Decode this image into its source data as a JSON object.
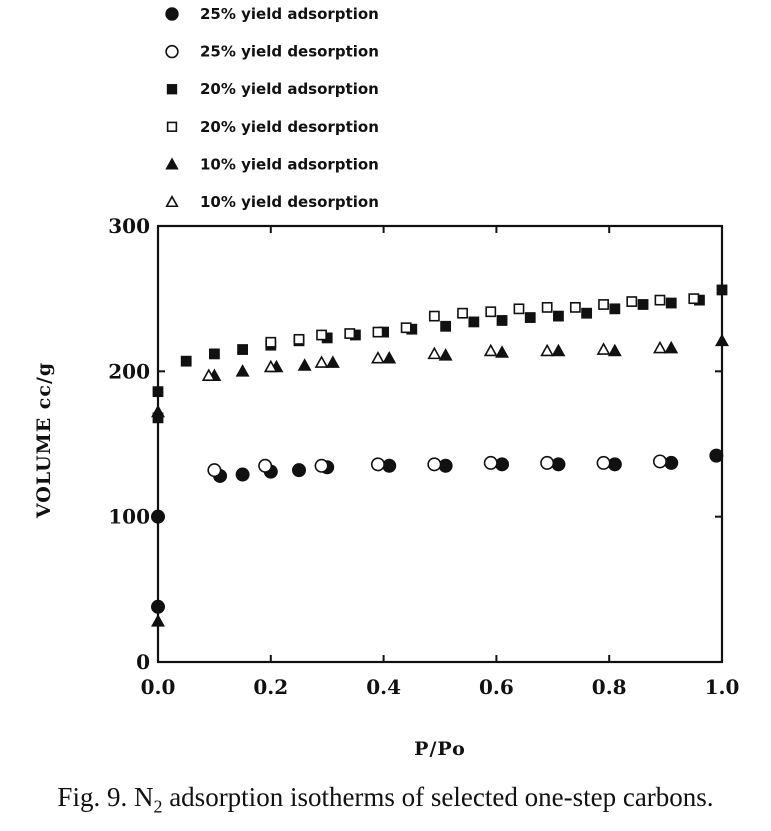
{
  "caption": {
    "prefix": "Fig. 9. N",
    "subscript": "2",
    "suffix": " adsorption isotherms of selected one-step carbons."
  },
  "chart_data": {
    "type": "scatter",
    "xlabel": "P/Po",
    "ylabel": "VOLUME cc/g",
    "xlim": [
      0.0,
      1.0
    ],
    "ylim": [
      0,
      300
    ],
    "x_ticks": [
      "0.0",
      "0.2",
      "0.4",
      "0.6",
      "0.8",
      "1.0"
    ],
    "y_ticks": [
      "0",
      "100",
      "200",
      "300"
    ],
    "legend_position": "top-left",
    "grid": false,
    "series": [
      {
        "name": "25% yield adsorption",
        "marker": "circle-filled",
        "x": [
          0.0,
          0.0,
          0.11,
          0.15,
          0.2,
          0.25,
          0.3,
          0.41,
          0.51,
          0.61,
          0.71,
          0.81,
          0.91,
          0.99
        ],
        "y": [
          38,
          100,
          128,
          129,
          131,
          132,
          134,
          135,
          135,
          136,
          136,
          136,
          137,
          142
        ]
      },
      {
        "name": "25% yield desorption",
        "marker": "circle-open",
        "x": [
          0.1,
          0.19,
          0.29,
          0.39,
          0.49,
          0.59,
          0.69,
          0.79,
          0.89
        ],
        "y": [
          132,
          135,
          135,
          136,
          136,
          137,
          137,
          137,
          138
        ]
      },
      {
        "name": "20% yield adsorption",
        "marker": "square-filled",
        "x": [
          0.0,
          0.0,
          0.05,
          0.1,
          0.15,
          0.2,
          0.25,
          0.3,
          0.35,
          0.4,
          0.45,
          0.51,
          0.56,
          0.61,
          0.66,
          0.71,
          0.76,
          0.81,
          0.86,
          0.91,
          0.96,
          1.0
        ],
        "y": [
          168,
          186,
          207,
          212,
          215,
          218,
          221,
          223,
          225,
          227,
          229,
          231,
          234,
          235,
          237,
          238,
          240,
          243,
          246,
          247,
          249,
          256
        ]
      },
      {
        "name": "20% yield desorption",
        "marker": "square-open",
        "x": [
          0.2,
          0.25,
          0.29,
          0.34,
          0.39,
          0.44,
          0.49,
          0.54,
          0.59,
          0.64,
          0.69,
          0.74,
          0.79,
          0.84,
          0.89,
          0.95
        ],
        "y": [
          220,
          222,
          225,
          226,
          227,
          230,
          238,
          240,
          241,
          243,
          244,
          244,
          246,
          248,
          249,
          250
        ]
      },
      {
        "name": "10% yield adsorption",
        "marker": "triangle-filled",
        "x": [
          0.0,
          0.0,
          0.1,
          0.15,
          0.21,
          0.26,
          0.31,
          0.41,
          0.51,
          0.61,
          0.71,
          0.81,
          0.91,
          1.0
        ],
        "y": [
          28,
          172,
          197,
          200,
          203,
          204,
          206,
          209,
          211,
          213,
          214,
          214,
          216,
          221
        ]
      },
      {
        "name": "10% yield desorption",
        "marker": "triangle-open",
        "x": [
          0.09,
          0.2,
          0.29,
          0.39,
          0.49,
          0.59,
          0.69,
          0.79,
          0.89
        ],
        "y": [
          197,
          203,
          206,
          209,
          212,
          214,
          214,
          215,
          216
        ]
      }
    ]
  }
}
